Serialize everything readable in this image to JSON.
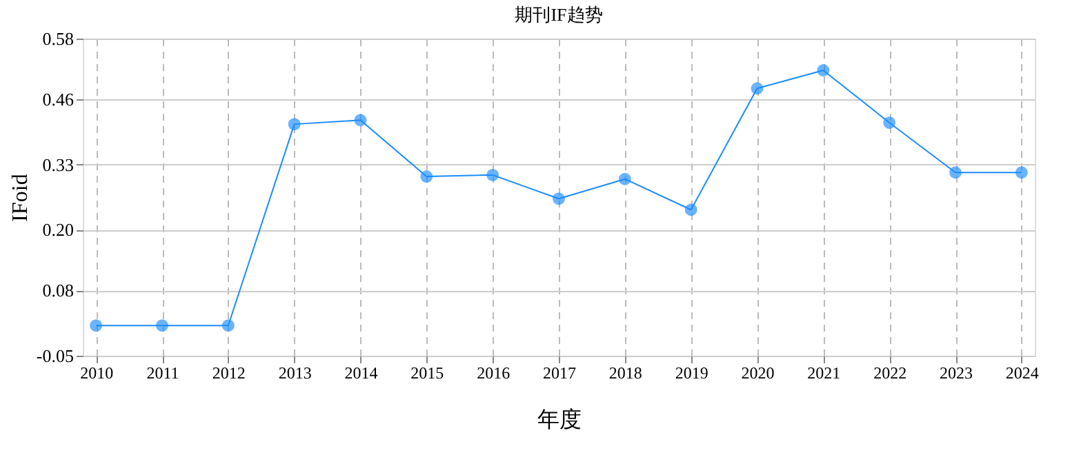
{
  "chart_data": {
    "type": "line",
    "title": "期刊IF趋势",
    "xlabel": "年度",
    "ylabel": "IFoid",
    "categories": [
      "2010",
      "2011",
      "2012",
      "2013",
      "2014",
      "2015",
      "2016",
      "2017",
      "2018",
      "2019",
      "2020",
      "2021",
      "2022",
      "2023",
      "2024"
    ],
    "series": [
      {
        "color": "#1a8cff",
        "values": [
          0.01,
          0.01,
          0.01,
          0.41,
          0.418,
          0.306,
          0.309,
          0.262,
          0.301,
          0.24,
          0.481,
          0.517,
          0.413,
          0.314,
          0.314
        ]
      }
    ],
    "ylim": [
      -0.05,
      0.58
    ],
    "yticks": [
      -0.05,
      0.08,
      {
        "value": 0.2,
        "label": "0.20"
      },
      0.33,
      0.46,
      0.58
    ],
    "grid": true,
    "marker": "circle",
    "line_style": "solid"
  }
}
